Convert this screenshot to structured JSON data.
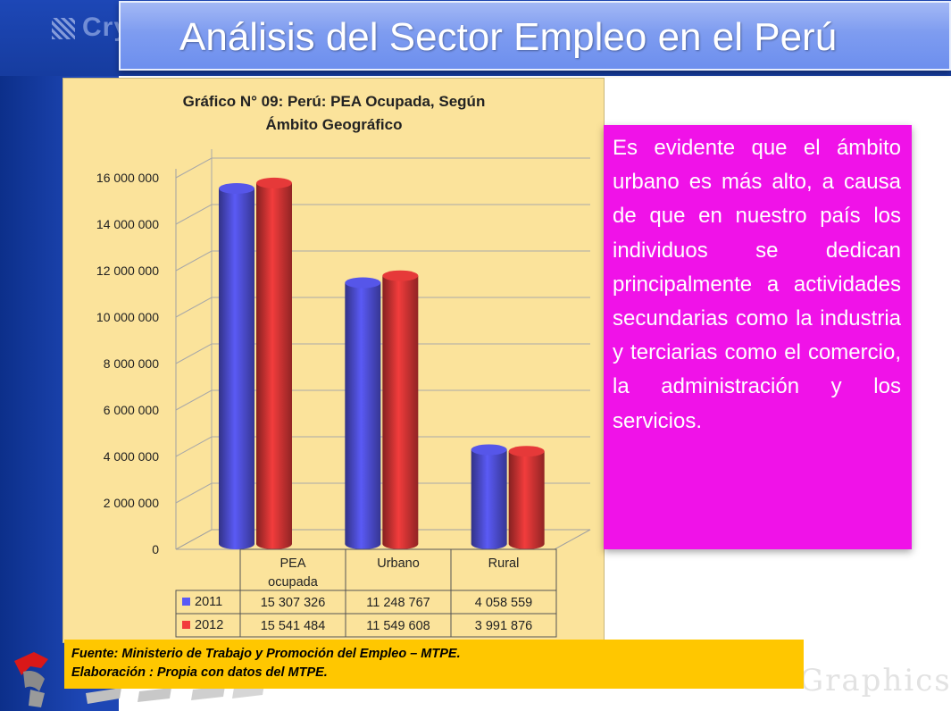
{
  "header": {
    "title": "Análisis del Sector Empleo en el Perú"
  },
  "background": {
    "watermark_top": "Cry",
    "watermark_bottom": "Graphics"
  },
  "chart_data": {
    "type": "bar",
    "title_line1": "Gráfico N° 09: Perú: PEA Ocupada, Según",
    "title_line2": "Ámbito Geográfico",
    "categories": [
      "PEA ocupada",
      "Urbano",
      "Rural"
    ],
    "category_lines": [
      [
        "PEA",
        "ocupada"
      ],
      [
        "Urbano"
      ],
      [
        "Rural"
      ]
    ],
    "series": [
      {
        "name": "2011",
        "values": [
          15307326,
          11248767,
          4058559
        ],
        "labels": [
          "15 307 326",
          "11 248 767",
          "4 058 559"
        ],
        "color": "#5a5af5"
      },
      {
        "name": "2012",
        "values": [
          15541484,
          11549608,
          3991876
        ],
        "labels": [
          "15 541 484",
          "11 549 608",
          "3 991 876"
        ],
        "color": "#f23c3c"
      }
    ],
    "yticks": [
      0,
      2000000,
      4000000,
      6000000,
      8000000,
      10000000,
      12000000,
      14000000,
      16000000
    ],
    "ytick_labels": [
      "0",
      "2 000 000",
      "4 000 000",
      "6 000 000",
      "8 000 000",
      "10 000 000",
      "12 000 000",
      "14 000 000",
      "16 000 000"
    ],
    "ylim": [
      0,
      16000000
    ],
    "grid": true,
    "legend": "data-table"
  },
  "commentary": {
    "text": "Es evidente que el ámbito urbano es más alto, a causa de que en nuestro país los individuos se dedican principalmente a actividades secundarias como la industria y terciarias como el comercio, la administración y los servicios."
  },
  "source": {
    "line1": "Fuente: Ministerio de Trabajo y Promoción del Empleo – MTPE.",
    "line2": "Elaboración : Propia con datos del MTPE."
  },
  "colors": {
    "title_bg": "#7e9cf0",
    "chart_bg": "#fbe39b",
    "commentary_bg": "#f012e8",
    "source_bg": "#ffc700",
    "side_band": "#1d46b4"
  }
}
